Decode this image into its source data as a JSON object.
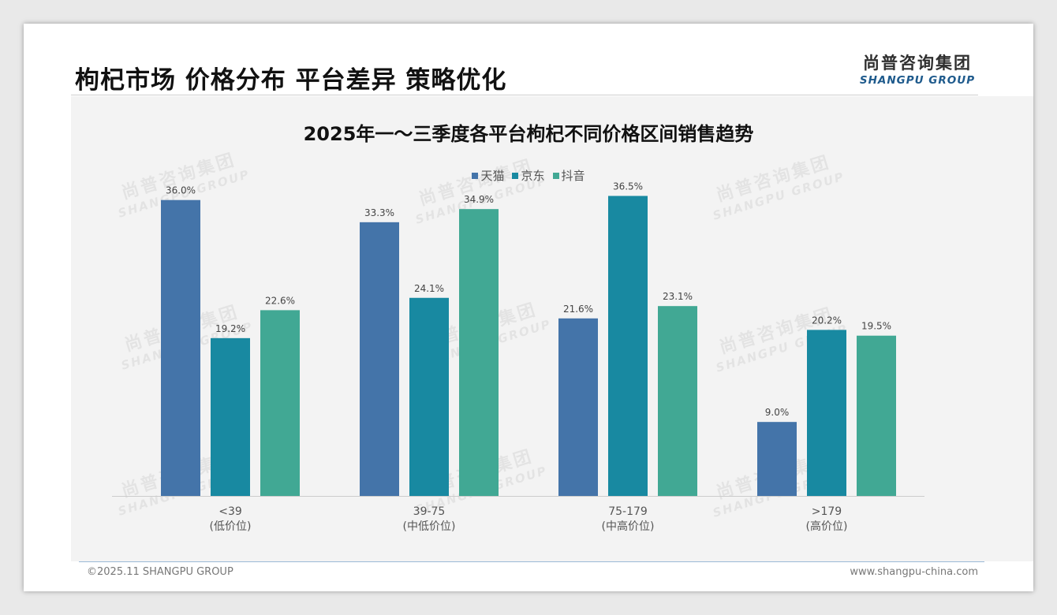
{
  "header": {
    "title": "枸杞市场 价格分布 平台差异 策略优化"
  },
  "logo": {
    "cn": "尚普咨询集团",
    "en": "SHANGPU GROUP"
  },
  "watermark": {
    "cn": "尚普咨询集团",
    "en": "SHANGPU GROUP"
  },
  "footer": {
    "copyright": "©2025.11 SHANGPU GROUP",
    "website": "www.shangpu-china.com"
  },
  "colors": {
    "tmall": "#4474a9",
    "jd": "#1889a1",
    "douyin": "#41a894"
  },
  "chart_data": {
    "type": "bar",
    "title": "2025年一～三季度各平台枸杞不同价格区间销售趋势",
    "categories": [
      {
        "main": "<39",
        "sub": "(低价位)"
      },
      {
        "main": "39-75",
        "sub": "(中低价位)"
      },
      {
        "main": "75-179",
        "sub": "(中高价位)"
      },
      {
        "main": ">179",
        "sub": "(高价位)"
      }
    ],
    "series": [
      {
        "name": "天猫",
        "values": [
          36.0,
          33.3,
          21.6,
          9.0
        ],
        "labels": [
          "36.0%",
          "33.3%",
          "21.6%",
          "9.0%"
        ]
      },
      {
        "name": "京东",
        "values": [
          19.2,
          24.1,
          36.5,
          20.2
        ],
        "labels": [
          "19.2%",
          "24.1%",
          "36.5%",
          "20.2%"
        ]
      },
      {
        "name": "抖音",
        "values": [
          22.6,
          34.9,
          23.1,
          19.5
        ],
        "labels": [
          "22.6%",
          "34.9%",
          "23.1%",
          "19.5%"
        ]
      }
    ],
    "ylim": [
      0,
      40
    ],
    "xlabel": "",
    "ylabel": "",
    "legend": "top-center",
    "grid": false
  }
}
